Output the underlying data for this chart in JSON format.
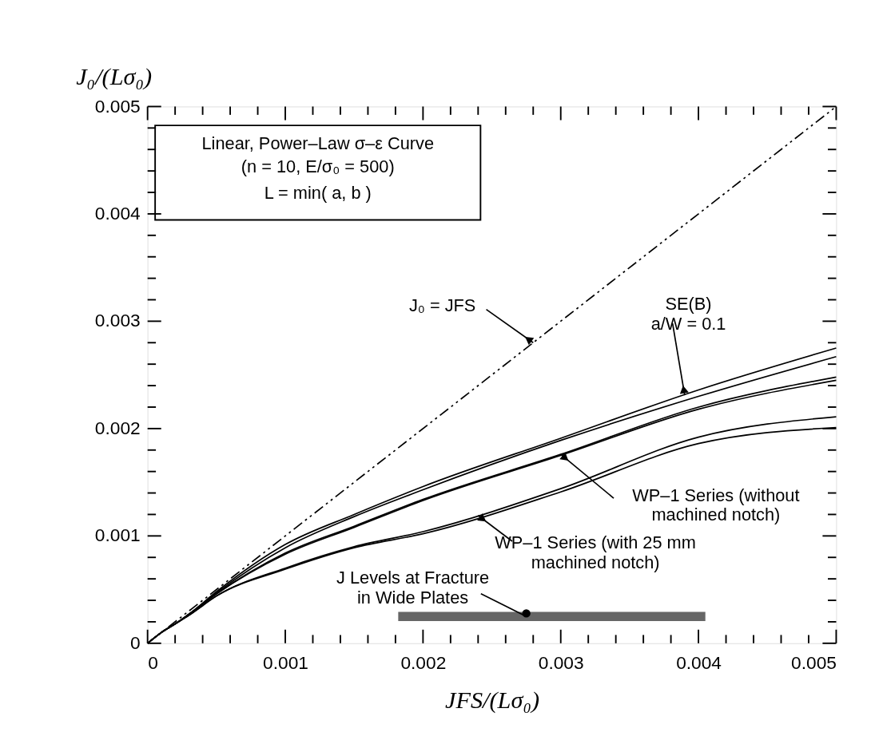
{
  "chart_data": {
    "type": "line",
    "xlabel": "JFS/(Lσ₀)",
    "ylabel": "J₀/(Lσ₀)",
    "xlim": [
      0,
      0.005
    ],
    "ylim": [
      0,
      0.005
    ],
    "xticks": [
      0,
      {
        "value": 0.0002,
        "label": null
      },
      {
        "value": 0.0004,
        "label": null
      },
      {
        "value": 0.0006,
        "label": null
      },
      {
        "value": 0.0008,
        "label": null
      },
      0.001,
      {
        "value": 0.0012,
        "label": null
      },
      {
        "value": 0.0014,
        "label": null
      },
      {
        "value": 0.0016,
        "label": null
      },
      {
        "value": 0.0018,
        "label": null
      },
      0.002,
      {
        "value": 0.0022,
        "label": null
      },
      {
        "value": 0.0024,
        "label": null
      },
      {
        "value": 0.0026,
        "label": null
      },
      {
        "value": 0.0028,
        "label": null
      },
      0.003,
      {
        "value": 0.0032,
        "label": null
      },
      {
        "value": 0.0034,
        "label": null
      },
      {
        "value": 0.0036,
        "label": null
      },
      {
        "value": 0.0038,
        "label": null
      },
      0.004,
      {
        "value": 0.0042,
        "label": null
      },
      {
        "value": 0.0044,
        "label": null
      },
      {
        "value": 0.0046,
        "label": null
      },
      {
        "value": 0.0048,
        "label": null
      },
      0.005
    ],
    "yticks": [
      0,
      {
        "value": 0.0002,
        "label": null
      },
      {
        "value": 0.0004,
        "label": null
      },
      {
        "value": 0.0006,
        "label": null
      },
      {
        "value": 0.0008,
        "label": null
      },
      0.001,
      {
        "value": 0.0012,
        "label": null
      },
      {
        "value": 0.0014,
        "label": null
      },
      {
        "value": 0.0016,
        "label": null
      },
      {
        "value": 0.0018,
        "label": null
      },
      0.002,
      {
        "value": 0.0022,
        "label": null
      },
      {
        "value": 0.0024,
        "label": null
      },
      {
        "value": 0.0026,
        "label": null
      },
      {
        "value": 0.0028,
        "label": null
      },
      0.003,
      {
        "value": 0.0032,
        "label": null
      },
      {
        "value": 0.0034,
        "label": null
      },
      {
        "value": 0.0036,
        "label": null
      },
      {
        "value": 0.0038,
        "label": null
      },
      0.004,
      {
        "value": 0.0042,
        "label": null
      },
      {
        "value": 0.0044,
        "label": null
      },
      {
        "value": 0.0046,
        "label": null
      },
      {
        "value": 0.0048,
        "label": null
      },
      0.005
    ],
    "grid": false,
    "marker": "none",
    "series": [
      {
        "color": "#000000",
        "line_style": "dashed",
        "x": [
          0,
          0.005
        ],
        "values": [
          0,
          0.005
        ]
      },
      {
        "color": "#000000",
        "x": [
          0,
          0.0001,
          0.0002,
          0.0003,
          0.0005,
          0.001,
          0.0015,
          0.002,
          0.003,
          0.004,
          0.005
        ],
        "values": [
          0,
          0.0001,
          0.00018,
          0.00027,
          0.00048,
          0.00092,
          0.0012,
          0.00146,
          0.00191,
          0.00236,
          0.00275
        ]
      },
      {
        "color": "#000000",
        "x": [
          0,
          0.0001,
          0.0002,
          0.0003,
          0.0005,
          0.001,
          0.0015,
          0.002,
          0.003,
          0.004,
          0.005
        ],
        "values": [
          0,
          0.0001,
          0.00018,
          0.00027,
          0.00047,
          0.00089,
          0.00118,
          0.00143,
          0.00189,
          0.0023,
          0.00267
        ]
      },
      {
        "color": "#000000",
        "x": [
          0,
          0.0001,
          0.0002,
          0.0003,
          0.0005,
          0.001,
          0.0015,
          0.002,
          0.003,
          0.004,
          0.005
        ],
        "values": [
          0,
          0.0001,
          0.00018,
          0.00027,
          0.00046,
          0.00084,
          0.00109,
          0.00134,
          0.00176,
          0.0022,
          0.00248
        ]
      },
      {
        "color": "#000000",
        "x": [
          0,
          0.0001,
          0.0002,
          0.0003,
          0.0005,
          0.001,
          0.0015,
          0.002,
          0.003,
          0.004,
          0.005
        ],
        "values": [
          0,
          0.0001,
          0.00018,
          0.00027,
          0.00046,
          0.00083,
          0.00108,
          0.00133,
          0.00175,
          0.00218,
          0.00245
        ]
      },
      {
        "color": "#000000",
        "x": [
          0,
          0.0001,
          0.0002,
          0.0003,
          0.0005,
          0.001,
          0.0015,
          0.002,
          0.003,
          0.004,
          0.005
        ],
        "values": [
          0,
          0.0001,
          0.00018,
          0.00026,
          0.00044,
          0.0007,
          0.0009,
          0.00104,
          0.00144,
          0.00192,
          0.00211
        ]
      },
      {
        "color": "#000000",
        "x": [
          0,
          0.0001,
          0.0002,
          0.0003,
          0.0005,
          0.001,
          0.0015,
          0.002,
          0.003,
          0.004,
          0.005
        ],
        "values": [
          0,
          0.0001,
          0.00018,
          0.00026,
          0.00044,
          0.00069,
          0.00089,
          0.00102,
          0.00141,
          0.00186,
          0.00201
        ]
      },
      {
        "color": "#666666",
        "x": [
          0.00182,
          0.00405
        ],
        "values": [
          0.00025,
          0.00025
        ]
      }
    ],
    "annotations": [
      "Linear, Power–Law σ–ε Curve",
      "(n = 10,  E/σ₀ = 500)",
      "L = min( a, b )",
      {
        "text": "J₀ = JFS",
        "x": 0.0028,
        "y": 0.0028
      },
      {
        "text": "SE(B)\na/W = 0.1",
        "x": 0.0039,
        "y": 0.00231
      },
      {
        "text": "WP–1 Series (without\nmachined notch)",
        "x": 0.003,
        "y": 0.00176
      },
      {
        "text": "WP–1 Series (with 25 mm\nmachined notch)",
        "x": 0.0024,
        "y": 0.00119
      },
      {
        "text": "J Levels at Fracture\nin Wide Plates",
        "x": 0.00275,
        "y": 0.00025
      }
    ]
  }
}
